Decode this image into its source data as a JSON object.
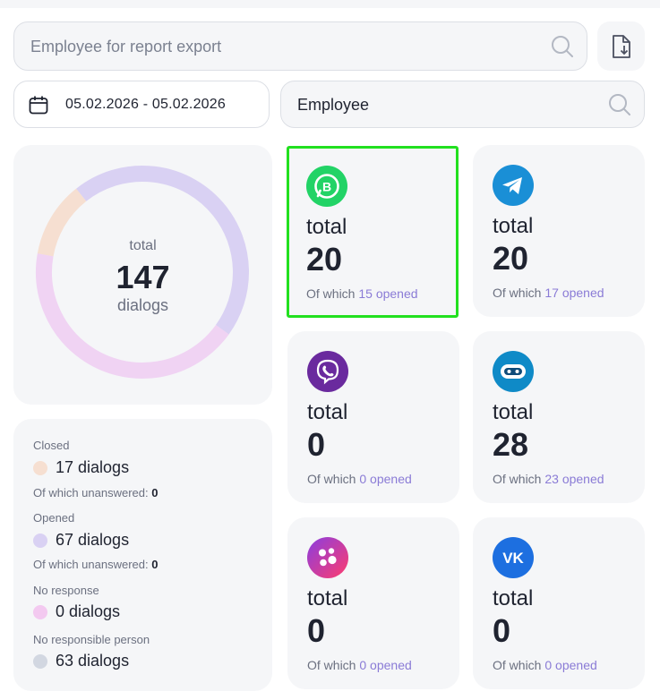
{
  "search": {
    "placeholder": "Employee for report export",
    "icon": "search-icon"
  },
  "export": {
    "icon": "file-download-icon"
  },
  "date_range": {
    "value": "05.02.2026 - 05.02.2026",
    "icon": "calendar-icon"
  },
  "employee_filter": {
    "placeholder": "Employee",
    "icon": "search-icon"
  },
  "summary": {
    "label_top": "total",
    "total": "147",
    "label_bottom": "dialogs",
    "segments": [
      {
        "name": "Closed",
        "value": 17,
        "color": "#f6dfd1"
      },
      {
        "name": "Opened",
        "value": 67,
        "color": "#d9d1f3"
      },
      {
        "name": "No response",
        "value": 0,
        "color": "#f3d0f0"
      },
      {
        "name": "No responsible person",
        "value": 63,
        "color": "#f0d3f3"
      }
    ]
  },
  "legend": [
    {
      "category": "Closed",
      "value": "17 dialogs",
      "color": "#f6dfd1",
      "sub_label": "Of which unanswered:",
      "sub_value": "0"
    },
    {
      "category": "Opened",
      "value": "67 dialogs",
      "color": "#d9d1f3",
      "sub_label": "Of which unanswered:",
      "sub_value": "0"
    },
    {
      "category": "No response",
      "value": "0 dialogs",
      "color": "#f3c9f0"
    },
    {
      "category": "No responsible person",
      "value": "63 dialogs",
      "color": "#d2d7e1"
    }
  ],
  "channels": [
    {
      "id": "whatsapp-business",
      "icon": "whatsapp-business-icon",
      "label": "total",
      "total": "20",
      "prefix": "Of which",
      "opened_count": "15",
      "opened_word": "opened",
      "selected": true
    },
    {
      "id": "telegram",
      "icon": "telegram-icon",
      "label": "total",
      "total": "20",
      "prefix": "Of which",
      "opened_count": "17",
      "opened_word": "opened"
    },
    {
      "id": "viber",
      "icon": "viber-icon",
      "label": "total",
      "total": "0",
      "prefix": "Of which",
      "opened_count": "0",
      "opened_word": "opened"
    },
    {
      "id": "bot",
      "icon": "bot-icon",
      "label": "total",
      "total": "28",
      "prefix": "Of which",
      "opened_count": "23",
      "opened_word": "opened"
    },
    {
      "id": "chat-widget",
      "icon": "chat-widget-icon",
      "label": "total",
      "total": "0",
      "prefix": "Of which",
      "opened_count": "0",
      "opened_word": "opened"
    },
    {
      "id": "vk",
      "icon": "vk-icon",
      "label": "total",
      "total": "0",
      "prefix": "Of which",
      "opened_count": "0",
      "opened_word": "opened"
    }
  ]
}
